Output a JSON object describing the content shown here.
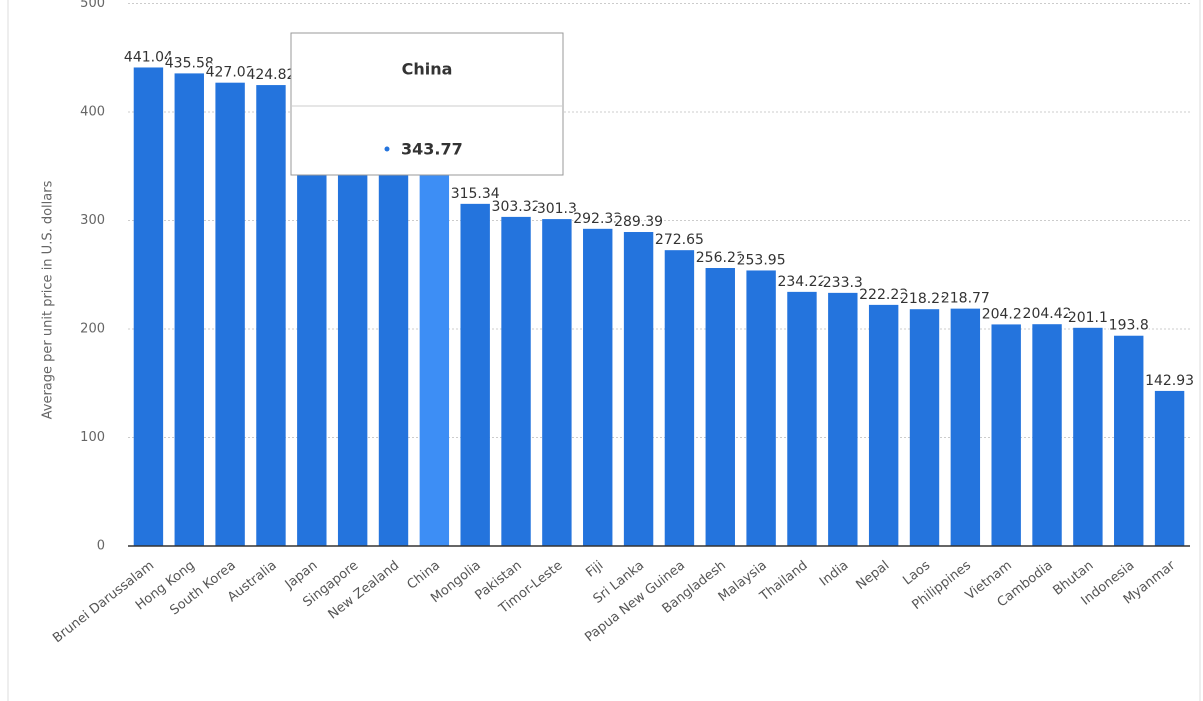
{
  "chart_data": {
    "type": "bar",
    "y_label": "Average per unit price in U.S. dollars",
    "categories": [
      "Brunei Darussalam",
      "Hong Kong",
      "South Korea",
      "Australia",
      "Japan",
      "Singapore",
      "New Zealand",
      "China",
      "Mongolia",
      "Pakistan",
      "Timor-Leste",
      "Fiji",
      "Sri Lanka",
      "Papua New Guinea",
      "Bangladesh",
      "Malaysia",
      "Thailand",
      "India",
      "Nepal",
      "Laos",
      "Philippines",
      "Vietnam",
      "Cambodia",
      "Bhutan",
      "Indonesia",
      "Myanmar"
    ],
    "values": [
      441.04,
      435.58,
      427.02,
      424.82,
      410.5,
      400.2,
      392.1,
      343.77,
      315.34,
      303.32,
      301.3,
      292.33,
      289.39,
      272.65,
      256.21,
      253.95,
      234.22,
      233.3,
      222.23,
      218.25,
      218.77,
      204.22,
      204.42,
      201.1,
      193.8,
      142.93
    ],
    "colors": [
      "#2474dd",
      "#2474dd",
      "#2474dd",
      "#2474dd",
      "#2474dd",
      "#2474dd",
      "#2474dd",
      "#3d8ef5",
      "#2474dd",
      "#2474dd",
      "#2474dd",
      "#2474dd",
      "#2474dd",
      "#2474dd",
      "#2474dd",
      "#2474dd",
      "#2474dd",
      "#2474dd",
      "#2474dd",
      "#2474dd",
      "#2474dd",
      "#2474dd",
      "#2474dd",
      "#2474dd",
      "#2474dd",
      "#2474dd"
    ],
    "ylim": [
      0,
      500
    ],
    "yticks": [
      0,
      100,
      200,
      300,
      400,
      500
    ],
    "grid": true
  }
}
